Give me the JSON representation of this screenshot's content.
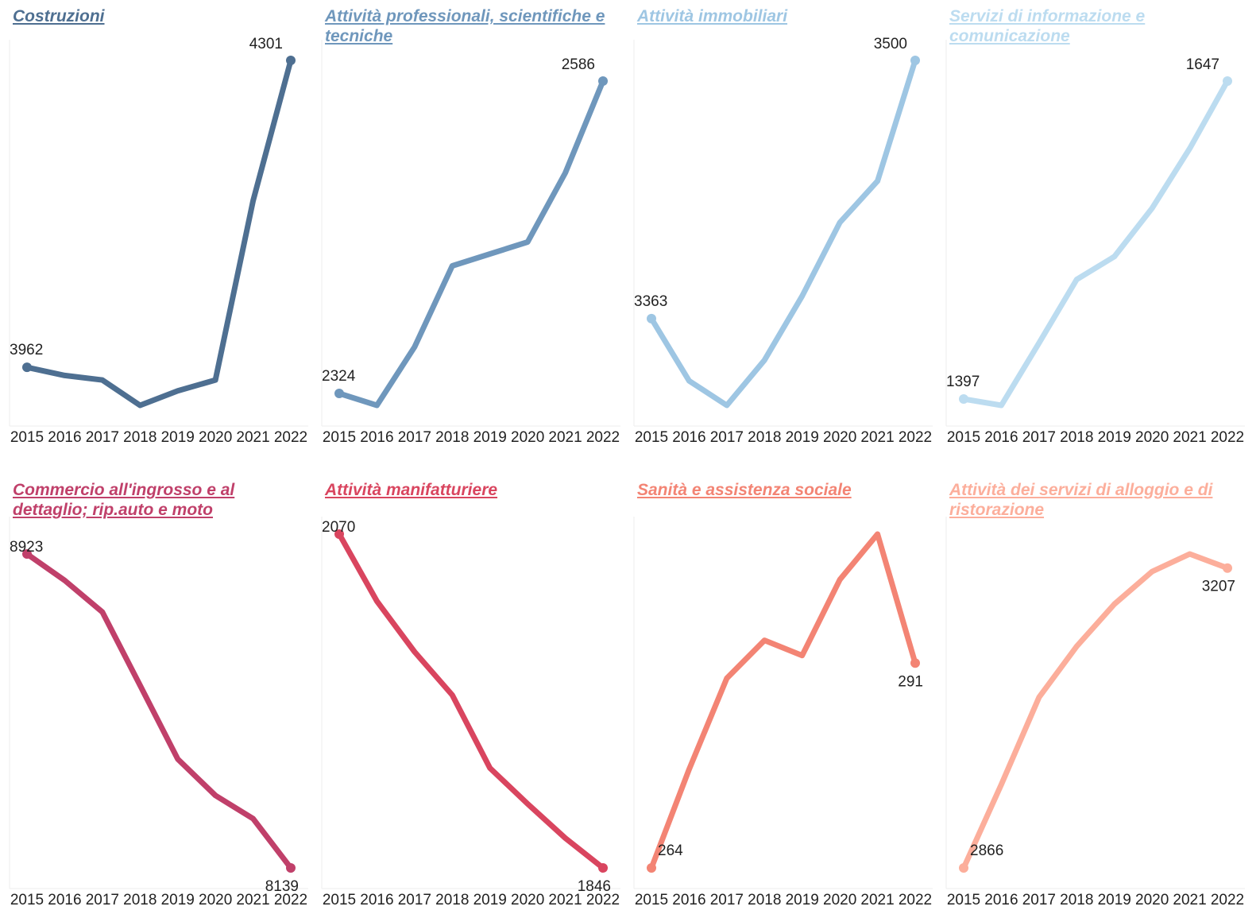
{
  "chart_data": [
    {
      "type": "line",
      "title": "Costruzioni",
      "color": "#4e6f91",
      "categories": [
        "2015",
        "2016",
        "2017",
        "2018",
        "2019",
        "2020",
        "2021",
        "2022"
      ],
      "values": [
        3962,
        3953,
        3948,
        3920,
        3936,
        3948,
        4146,
        4301
      ]
    },
    {
      "type": "line",
      "title": "Attività professionali, scientifiche e tecniche",
      "color": "#6f97bc",
      "categories": [
        "2015",
        "2016",
        "2017",
        "2018",
        "2019",
        "2020",
        "2021",
        "2022"
      ],
      "values": [
        2324,
        2314,
        2363,
        2431,
        2441,
        2451,
        2509,
        2586
      ]
    },
    {
      "type": "line",
      "title": "Attività immobiliari",
      "color": "#9ec6e3",
      "categories": [
        "2015",
        "2016",
        "2017",
        "2018",
        "2019",
        "2020",
        "2021",
        "2022"
      ],
      "values": [
        3363,
        3330,
        3317,
        3341,
        3375,
        3414,
        3436,
        3500
      ]
    },
    {
      "type": "line",
      "title": "Servizi di informazione e comunicazione",
      "color": "#bcdcf0",
      "categories": [
        "2015",
        "2016",
        "2017",
        "2018",
        "2019",
        "2020",
        "2021",
        "2022"
      ],
      "values": [
        1397,
        1392,
        1441,
        1491,
        1509,
        1547,
        1594,
        1647
      ]
    },
    {
      "type": "line",
      "title": "Commercio all'ingrosso e al dettaglio; rip.auto e moto",
      "color": "#c0406a",
      "categories": [
        "2015",
        "2016",
        "2017",
        "2018",
        "2019",
        "2020",
        "2021",
        "2022"
      ],
      "values": [
        8923,
        8857,
        8778,
        8595,
        8411,
        8320,
        8262,
        8139
      ]
    },
    {
      "type": "line",
      "title": "Attività manifatturiere",
      "color": "#d9455f",
      "categories": [
        "2015",
        "2016",
        "2017",
        "2018",
        "2019",
        "2020",
        "2021",
        "2022"
      ],
      "values": [
        2070,
        2025,
        1991,
        1962,
        1913,
        1889,
        1866,
        1846
      ]
    },
    {
      "type": "line",
      "title": "Sanità e assistenza sociale",
      "color": "#f38474",
      "categories": [
        "2015",
        "2016",
        "2017",
        "2018",
        "2019",
        "2020",
        "2021",
        "2022"
      ],
      "values": [
        264,
        277,
        289,
        294,
        292,
        302,
        308,
        291
      ]
    },
    {
      "type": "line",
      "title": "Attività dei servizi di alloggio e di ristorazione",
      "color": "#fcae9b",
      "categories": [
        "2015",
        "2016",
        "2017",
        "2018",
        "2019",
        "2020",
        "2021",
        "2022"
      ],
      "values": [
        2866,
        2961,
        3060,
        3118,
        3166,
        3203,
        3223,
        3207
      ]
    }
  ]
}
